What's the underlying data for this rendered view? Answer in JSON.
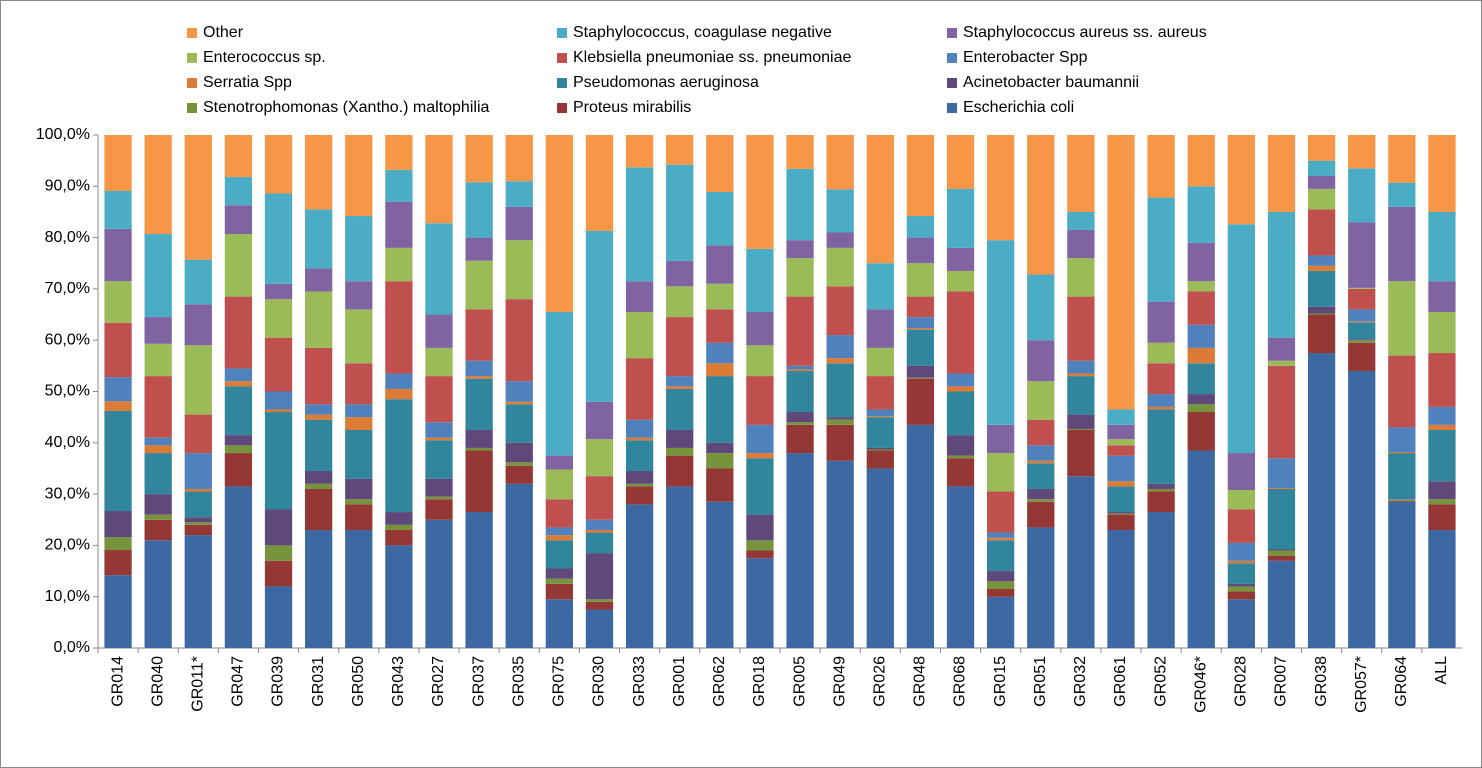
{
  "chart_data": {
    "type": "stacked-bar",
    "categories": [
      "GR014",
      "GR040",
      "GR011*",
      "GR047",
      "GR039",
      "GR031",
      "GR050",
      "GR043",
      "GR027",
      "GR037",
      "GR035",
      "GR075",
      "GR030",
      "GR033",
      "GR001",
      "GR062",
      "GR018",
      "GR005",
      "GR049",
      "GR026",
      "GR048",
      "GR068",
      "GR015",
      "GR051",
      "GR032",
      "GR061",
      "GR052",
      "GR046*",
      "GR028",
      "GR007",
      "GR038",
      "GR057*",
      "GR064",
      "ALL"
    ],
    "ylim": [
      0,
      100
    ],
    "yticks": [
      {
        "value": 0,
        "label": "0,0%"
      },
      {
        "value": 10,
        "label": "10,0%"
      },
      {
        "value": 20,
        "label": "20,0%"
      },
      {
        "value": 30,
        "label": "30,0%"
      },
      {
        "value": 40,
        "label": "40,0%"
      },
      {
        "value": 50,
        "label": "50,0%"
      },
      {
        "value": 60,
        "label": "60,0%"
      },
      {
        "value": 70,
        "label": "70,0%"
      },
      {
        "value": 80,
        "label": "80,0%"
      },
      {
        "value": 90,
        "label": "90,0%"
      },
      {
        "value": 100,
        "label": "100,0%"
      }
    ],
    "grid": false,
    "series": [
      {
        "name": "Other",
        "color": "#f79646",
        "values": [
          10.9,
          19.3,
          24.3,
          8.2,
          11.4,
          14.5,
          15.8,
          6.8,
          17.2,
          9.2,
          9,
          34.5,
          18.7,
          6.3,
          5.8,
          11.1,
          22.2,
          6.6,
          10.6,
          25,
          15.8,
          10.5,
          20.5,
          27.2,
          15,
          53.5,
          12.2,
          10,
          17.4,
          15,
          5,
          6.5,
          9.3,
          15
        ]
      },
      {
        "name": "Staphylococcus, coagulase negative",
        "color": "#4bacc6",
        "values": [
          7.4,
          16.2,
          8.7,
          5.5,
          17.6,
          11.5,
          12.7,
          6.2,
          17.8,
          10.8,
          5,
          28,
          33.3,
          22.2,
          18.7,
          10.4,
          12.3,
          13.9,
          8.4,
          9,
          4.2,
          11.5,
          36,
          12.8,
          3.5,
          3,
          20.3,
          11,
          44.6,
          24.5,
          3,
          10.5,
          4.7,
          13.5
        ]
      },
      {
        "name": "Staphylococcus aureus ss. aureus",
        "color": "#8064a2",
        "values": [
          10.2,
          5.2,
          8,
          5.6,
          3,
          4.5,
          5.5,
          9,
          6.5,
          4.5,
          6.5,
          2.7,
          7.3,
          6,
          5,
          7.5,
          6.5,
          3.5,
          3,
          7.5,
          5,
          4.5,
          5.5,
          8,
          5.5,
          2.8,
          8,
          7.5,
          7.2,
          4.5,
          2.5,
          12.8,
          14.5,
          6
        ]
      },
      {
        "name": "Enterococcus sp.",
        "color": "#9bbb59",
        "values": [
          8.1,
          6.3,
          13.5,
          12.2,
          7.5,
          11,
          10.5,
          6.5,
          5.5,
          9.5,
          11.5,
          5.8,
          7.2,
          9,
          6,
          5,
          6,
          7.5,
          7.5,
          5.5,
          6.5,
          4,
          7.5,
          7.5,
          7.5,
          1.2,
          4,
          2,
          3.8,
          1,
          4,
          0.2,
          14.5,
          8
        ]
      },
      {
        "name": "Klebsiella pneumoniae ss. pneumoniae",
        "color": "#c0504d",
        "values": [
          10.6,
          12,
          7.5,
          14,
          10.5,
          11,
          8,
          18,
          9,
          10,
          16,
          5.5,
          8.5,
          12,
          11.5,
          6.5,
          9.5,
          13.5,
          9.5,
          6.5,
          4,
          16,
          8,
          5,
          12.5,
          2,
          6,
          6.5,
          6.5,
          18,
          9,
          4,
          14,
          10.5
        ]
      },
      {
        "name": "Enterobacter Spp",
        "color": "#4f81bd",
        "values": [
          4.7,
          1.5,
          7,
          2.5,
          3.5,
          2,
          2.5,
          3,
          3,
          3,
          4,
          1.5,
          2,
          3.5,
          2,
          4,
          5.5,
          0.7,
          4.5,
          1.3,
          2.2,
          2.5,
          1,
          3,
          2.5,
          5,
          2.5,
          4.5,
          3.5,
          5.8,
          2,
          2.3,
          4.8,
          3.5
        ]
      },
      {
        "name": "Serratia Spp",
        "color": "#dc7b36",
        "values": [
          1.9,
          1.5,
          0.5,
          1,
          0.5,
          1,
          2.5,
          2,
          0.5,
          0.5,
          0.5,
          1,
          0.5,
          0.5,
          0.5,
          2.5,
          1,
          0.3,
          1,
          0.2,
          0.3,
          1,
          0.5,
          0.5,
          0.5,
          1,
          0.5,
          3,
          0.5,
          0.2,
          1,
          0.2,
          0.2,
          1
        ]
      },
      {
        "name": "Pseudomonas aeruginosa",
        "color": "#31859c",
        "values": [
          19.5,
          8,
          5,
          9.5,
          19,
          10,
          9.5,
          22,
          7.5,
          10,
          7.5,
          5.5,
          4,
          6,
          8,
          13,
          11,
          8,
          10.5,
          6,
          7,
          8.5,
          6,
          5,
          7.5,
          5,
          14.5,
          6,
          4,
          11.8,
          7,
          3.3,
          9,
          10
        ]
      },
      {
        "name": "Acinetobacter baumannii",
        "color": "#5f497a",
        "values": [
          5.1,
          4,
          1,
          2,
          7,
          2.5,
          4,
          2.5,
          3.5,
          3.5,
          3.8,
          2,
          9,
          2.5,
          3.5,
          2,
          5,
          2,
          0.5,
          0.3,
          2.3,
          4,
          2,
          2,
          2.8,
          0.3,
          1,
          2,
          0.5,
          0.2,
          1.3,
          0.2,
          0.1,
          3.5
        ]
      },
      {
        "name": "Stenotrophomonas (Xantho.) maltophilia",
        "color": "#77933c",
        "values": [
          2.5,
          1,
          0.5,
          1.5,
          3,
          1,
          1,
          1,
          0.5,
          0.5,
          0.7,
          1,
          0.5,
          0.5,
          1.5,
          3,
          2,
          0.5,
          1,
          0.2,
          0.2,
          0.5,
          1.5,
          0.5,
          0.2,
          0.2,
          0.5,
          1.5,
          1,
          1,
          0.2,
          0.5,
          0.2,
          1
        ]
      },
      {
        "name": "Proteus mirabilis",
        "color": "#953735",
        "values": [
          4.9,
          4,
          2,
          6.5,
          5,
          8,
          5,
          3,
          4,
          12,
          3.5,
          3,
          1.5,
          3.5,
          6,
          6.5,
          1.5,
          5.5,
          7,
          3.5,
          9,
          5.5,
          1.5,
          5,
          9,
          3,
          4,
          7.5,
          1.5,
          1,
          7.5,
          5.5,
          0.2,
          5
        ]
      },
      {
        "name": "Escherichia coli",
        "color": "#3d69a2",
        "values": [
          14.2,
          21,
          22,
          31.5,
          12,
          23,
          23,
          20,
          25,
          26.5,
          32,
          9.5,
          7.5,
          28,
          31.5,
          28.5,
          17.5,
          38,
          36.5,
          35,
          43.5,
          31.5,
          10,
          23.5,
          33.5,
          23,
          26.5,
          38.5,
          9.5,
          17,
          57.5,
          54,
          28.5,
          23
        ]
      }
    ]
  }
}
